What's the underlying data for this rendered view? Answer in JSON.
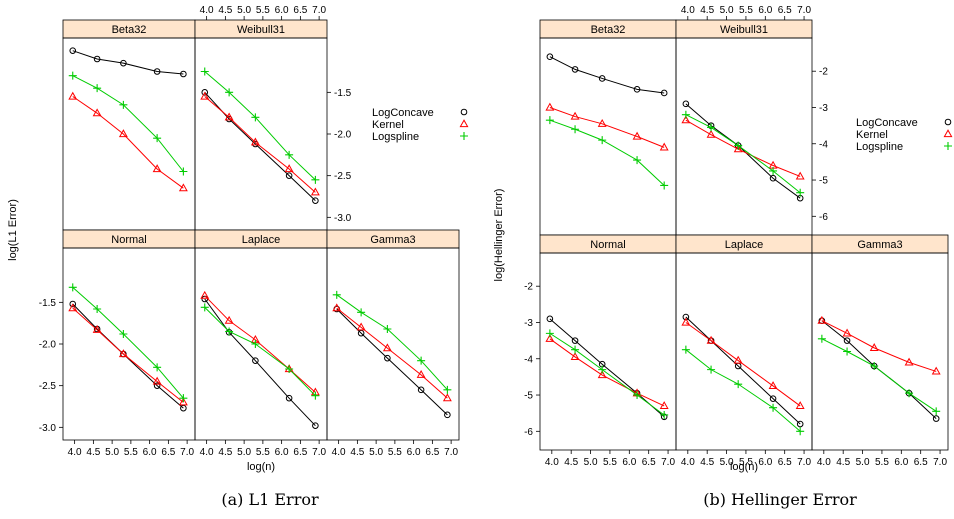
{
  "colors": {
    "strip": "#ffe5cc",
    "LogConcave": "#000000",
    "Kernel": "#ff0000",
    "Logspline": "#00cc00"
  },
  "captions": {
    "a": "(a) L1 Error",
    "b": "(b) Hellinger Error"
  },
  "chart_data": [
    {
      "type": "line",
      "title": "",
      "xlabel": "log(n)",
      "ylabel": "log(L1 Error)",
      "xlim": [
        3.85,
        7.05
      ],
      "ylim": [
        -3.08,
        -0.92
      ],
      "x_ticks": [
        "4.0",
        "4.5",
        "5.0",
        "5.5",
        "6.0",
        "6.5",
        "7.0"
      ],
      "y_ticks": [
        "-1.5",
        "-2.0",
        "-2.5",
        "-3.0"
      ],
      "legend": {
        "placement": "right",
        "entries": [
          {
            "label": "LogConcave",
            "marker": "circle"
          },
          {
            "label": "Kernel",
            "marker": "triangle"
          },
          {
            "label": "Logspline",
            "marker": "plus"
          }
        ]
      },
      "x": [
        3.95,
        4.6,
        5.3,
        6.2,
        6.9
      ],
      "panels": [
        {
          "name": "Beta32",
          "series": [
            {
              "name": "LogConcave",
              "values": [
                -1.0,
                -1.1,
                -1.15,
                -1.25,
                -1.28
              ]
            },
            {
              "name": "Kernel",
              "values": [
                -1.55,
                -1.75,
                -2.0,
                -2.42,
                -2.65
              ]
            },
            {
              "name": "Logspline",
              "values": [
                -1.3,
                -1.45,
                -1.65,
                -2.05,
                -2.45
              ]
            }
          ]
        },
        {
          "name": "Weibull31",
          "series": [
            {
              "name": "LogConcave",
              "values": [
                -1.5,
                -1.82,
                -2.12,
                -2.5,
                -2.8
              ]
            },
            {
              "name": "Kernel",
              "values": [
                -1.55,
                -1.8,
                -2.1,
                -2.42,
                -2.7
              ]
            },
            {
              "name": "Logspline",
              "values": [
                -1.25,
                -1.5,
                -1.8,
                -2.25,
                -2.55
              ]
            }
          ]
        },
        {
          "name": "Normal",
          "series": [
            {
              "name": "LogConcave",
              "values": [
                -1.52,
                -1.82,
                -2.12,
                -2.5,
                -2.77
              ]
            },
            {
              "name": "Kernel",
              "values": [
                -1.57,
                -1.83,
                -2.12,
                -2.45,
                -2.7
              ]
            },
            {
              "name": "Logspline",
              "values": [
                -1.32,
                -1.58,
                -1.88,
                -2.28,
                -2.65
              ]
            }
          ]
        },
        {
          "name": "Laplace",
          "series": [
            {
              "name": "LogConcave",
              "values": [
                -1.46,
                -1.86,
                -2.2,
                -2.65,
                -2.98
              ]
            },
            {
              "name": "Kernel",
              "values": [
                -1.42,
                -1.72,
                -1.95,
                -2.3,
                -2.58
              ]
            },
            {
              "name": "Logspline",
              "values": [
                -1.56,
                -1.85,
                -2.0,
                -2.3,
                -2.62
              ]
            }
          ]
        },
        {
          "name": "Gamma3",
          "series": [
            {
              "name": "LogConcave",
              "values": [
                -1.58,
                -1.87,
                -2.17,
                -2.55,
                -2.85
              ]
            },
            {
              "name": "Kernel",
              "values": [
                -1.57,
                -1.8,
                -2.05,
                -2.37,
                -2.65
              ]
            },
            {
              "name": "Logspline",
              "values": [
                -1.41,
                -1.62,
                -1.82,
                -2.2,
                -2.55
              ]
            }
          ]
        }
      ]
    },
    {
      "type": "line",
      "title": "",
      "xlabel": "log(n)",
      "ylabel": "log(Hellinger Error)",
      "xlim": [
        3.85,
        7.05
      ],
      "ylim": [
        -6.35,
        -1.25
      ],
      "x_ticks": [
        "4.0",
        "4.5",
        "5.0",
        "5.5",
        "6.0",
        "6.5",
        "7.0"
      ],
      "y_ticks": [
        "-2",
        "-3",
        "-4",
        "-5",
        "-6"
      ],
      "legend": {
        "placement": "right",
        "entries": [
          {
            "label": "LogConcave",
            "marker": "circle"
          },
          {
            "label": "Kernel",
            "marker": "triangle"
          },
          {
            "label": "Logspline",
            "marker": "plus"
          }
        ]
      },
      "x": [
        3.95,
        4.6,
        5.3,
        6.2,
        6.9
      ],
      "panels": [
        {
          "name": "Beta32",
          "series": [
            {
              "name": "LogConcave",
              "values": [
                -1.6,
                -1.95,
                -2.2,
                -2.5,
                -2.6
              ]
            },
            {
              "name": "Kernel",
              "values": [
                -3.0,
                -3.25,
                -3.45,
                -3.8,
                -4.1
              ]
            },
            {
              "name": "Logspline",
              "values": [
                -3.35,
                -3.6,
                -3.9,
                -4.45,
                -5.15
              ]
            }
          ]
        },
        {
          "name": "Weibull31",
          "series": [
            {
              "name": "LogConcave",
              "values": [
                -2.9,
                -3.5,
                -4.05,
                -4.95,
                -5.5
              ]
            },
            {
              "name": "Kernel",
              "values": [
                -3.35,
                -3.75,
                -4.15,
                -4.6,
                -4.9
              ]
            },
            {
              "name": "Logspline",
              "values": [
                -3.2,
                -3.55,
                -4.05,
                -4.75,
                -5.35
              ]
            }
          ]
        },
        {
          "name": "Normal",
          "series": [
            {
              "name": "LogConcave",
              "values": [
                -2.9,
                -3.5,
                -4.15,
                -4.95,
                -5.6
              ]
            },
            {
              "name": "Kernel",
              "values": [
                -3.45,
                -3.95,
                -4.45,
                -4.95,
                -5.3
              ]
            },
            {
              "name": "Logspline",
              "values": [
                -3.3,
                -3.75,
                -4.3,
                -5.0,
                -5.55
              ]
            }
          ]
        },
        {
          "name": "Laplace",
          "series": [
            {
              "name": "LogConcave",
              "values": [
                -2.85,
                -3.5,
                -4.2,
                -5.1,
                -5.8
              ]
            },
            {
              "name": "Kernel",
              "values": [
                -3.0,
                -3.5,
                -4.05,
                -4.75,
                -5.3
              ]
            },
            {
              "name": "Logspline",
              "values": [
                -3.75,
                -4.3,
                -4.7,
                -5.35,
                -6.0
              ]
            }
          ]
        },
        {
          "name": "Gamma3",
          "series": [
            {
              "name": "LogConcave",
              "values": [
                -2.95,
                -3.5,
                -4.2,
                -4.95,
                -5.65
              ]
            },
            {
              "name": "Kernel",
              "values": [
                -2.95,
                -3.3,
                -3.7,
                -4.1,
                -4.35
              ]
            },
            {
              "name": "Logspline",
              "values": [
                -3.45,
                -3.8,
                -4.2,
                -4.95,
                -5.45
              ]
            }
          ]
        }
      ]
    }
  ]
}
